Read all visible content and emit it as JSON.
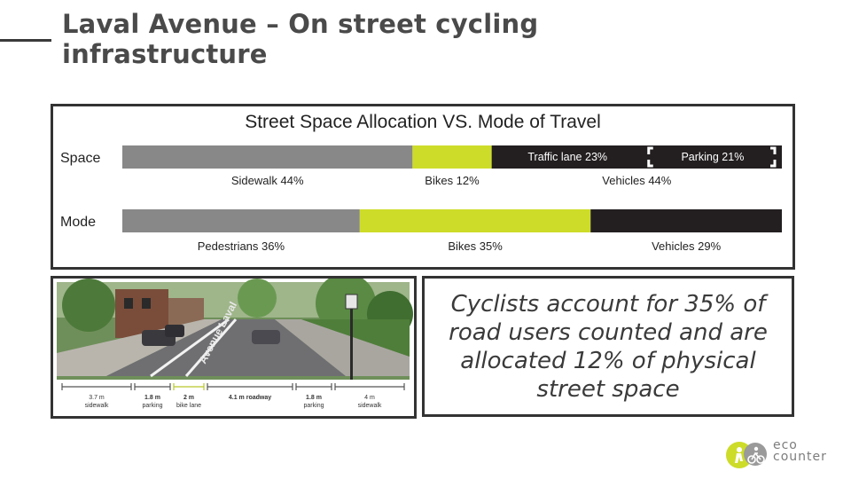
{
  "slide": {
    "title": "Laval Avenue – On street cycling infrastructure",
    "quote": "Cyclists account for 35% of road users counted and are allocated 12% of physical street space"
  },
  "chart_data": {
    "type": "bar",
    "orientation": "horizontal-stacked",
    "title": "Street Space Allocation VS. Mode of Travel",
    "categories": [
      "Space",
      "Mode"
    ],
    "xlim": [
      0,
      100
    ],
    "grid": false,
    "rows": [
      {
        "name": "Space",
        "segments": [
          {
            "label": "Sidewalk 44%",
            "value": 44,
            "color": "#888888"
          },
          {
            "label": "Bikes 12%",
            "value": 12,
            "color": "#cddc29"
          },
          {
            "label": "Vehicles 44%",
            "value": 44,
            "color": "#231f20",
            "subsegments": [
              {
                "label": "Traffic lane 23%",
                "value": 23
              },
              {
                "label": "Parking 21%",
                "value": 21
              }
            ]
          }
        ]
      },
      {
        "name": "Mode",
        "segments": [
          {
            "label": "Pedestrians 36%",
            "value": 36,
            "color": "#888888"
          },
          {
            "label": "Bikes 35%",
            "value": 35,
            "color": "#cddc29"
          },
          {
            "label": "Vehicles 29%",
            "value": 29,
            "color": "#231f20"
          }
        ]
      }
    ]
  },
  "photo": {
    "street_sign": "Avenue Laval",
    "cross_section": [
      {
        "width": "3.7 m",
        "name": "sidewalk",
        "color": "#555555"
      },
      {
        "width": "1.8 m",
        "name": "parking",
        "color": "#555555"
      },
      {
        "width": "2 m",
        "name": "bike lane",
        "color": "#b8c82a"
      },
      {
        "width": "4.1 m roadway",
        "name": "",
        "color": "#555555"
      },
      {
        "width": "1.8 m",
        "name": "parking",
        "color": "#555555"
      },
      {
        "width": "4 m",
        "name": "sidewalk",
        "color": "#555555"
      }
    ]
  },
  "logo": {
    "line1": "eco",
    "line2": "counter"
  },
  "colors": {
    "accent": "#cddc29",
    "dark": "#231f20",
    "gray": "#888888",
    "text": "#4a4a4a"
  }
}
